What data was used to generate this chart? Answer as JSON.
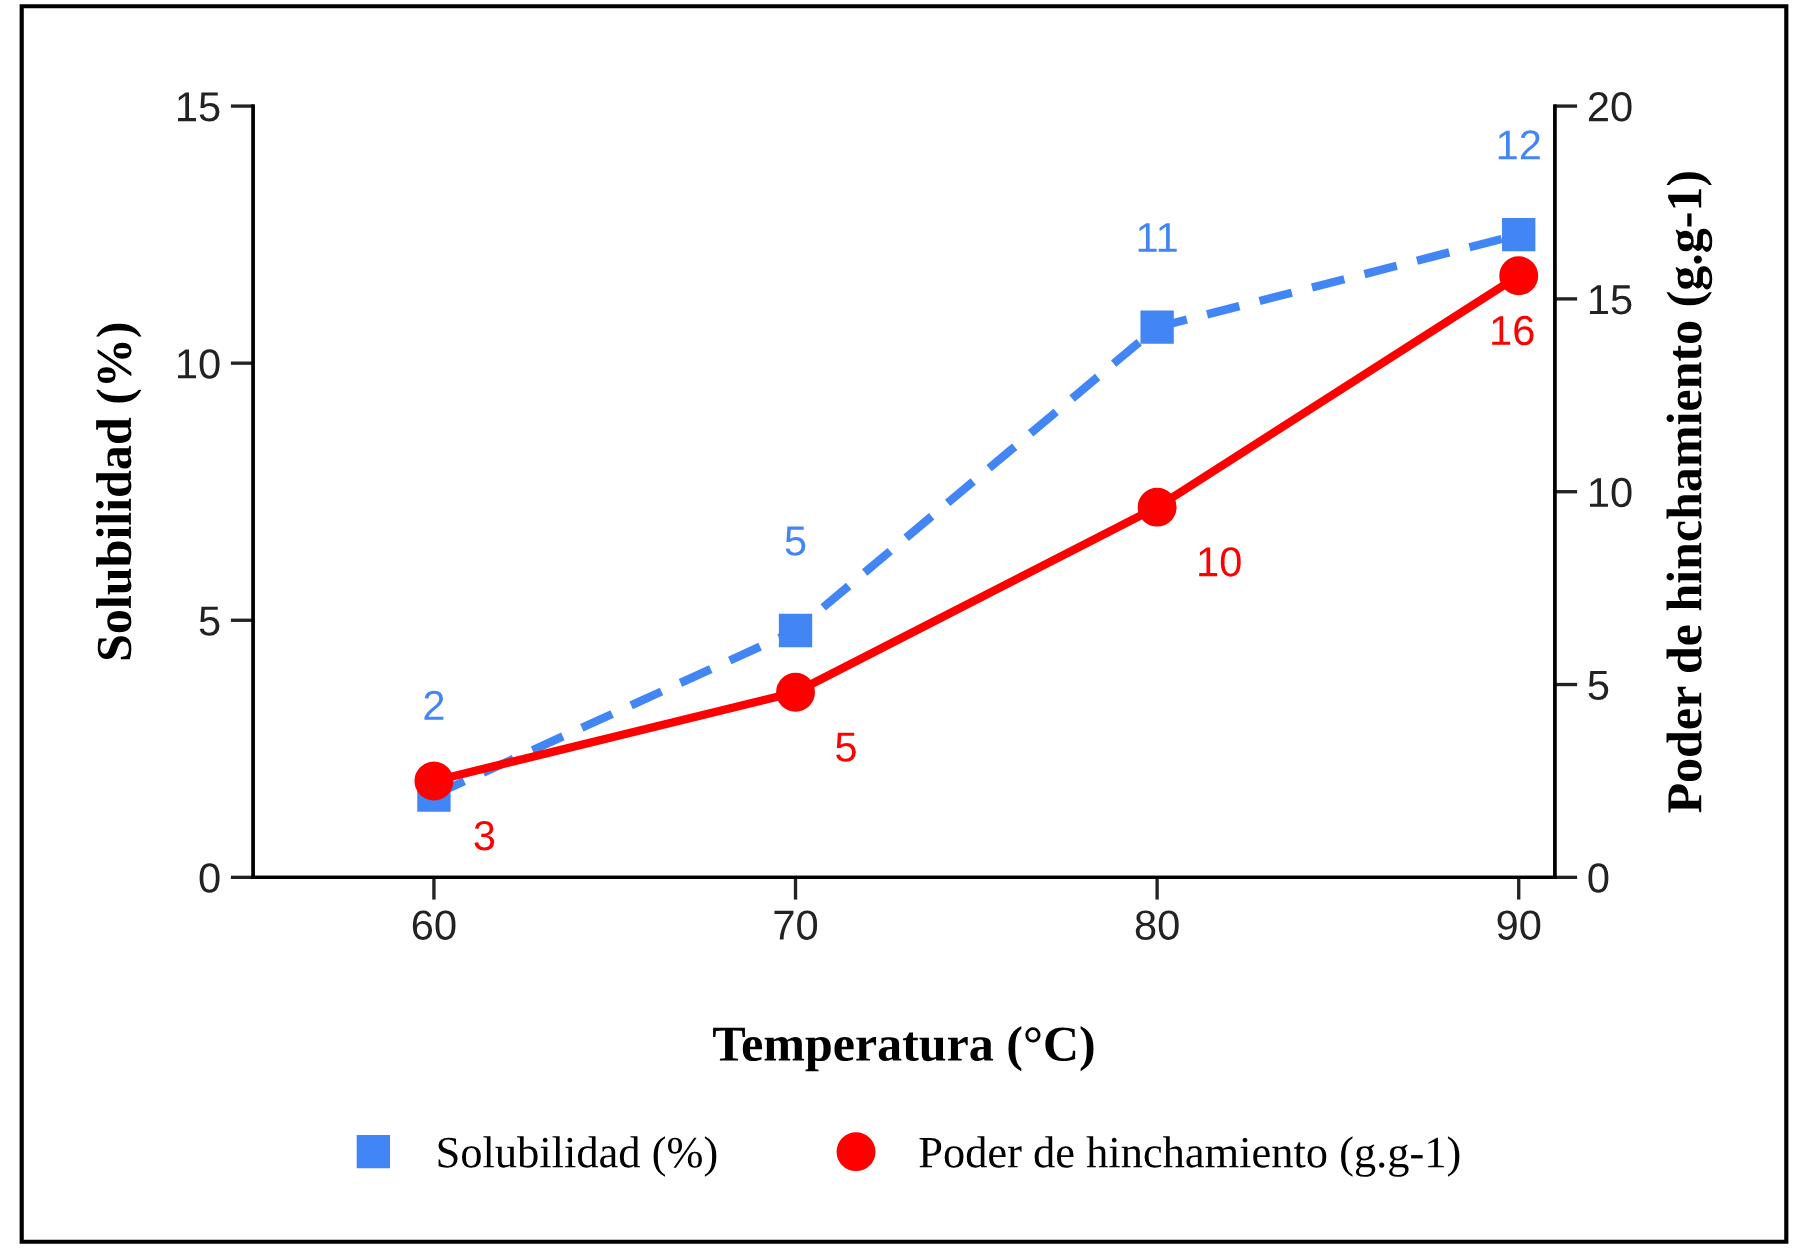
{
  "chart_data": {
    "type": "line",
    "xlabel": "Temperatura (°C)",
    "ylabel": "Solubilidad (%)",
    "y2label": "Poder de hinchamiento (g.g-1)",
    "x": [
      60,
      70,
      80,
      90
    ],
    "xlim": [
      55,
      91
    ],
    "xticks": [
      60,
      70,
      80,
      90
    ],
    "ylim": [
      0,
      15
    ],
    "yticks": [
      0,
      5,
      10,
      15
    ],
    "y2lim": [
      0,
      20
    ],
    "y2ticks": [
      0,
      5,
      10,
      15,
      20
    ],
    "series": [
      {
        "name": "Solubilidad (%)",
        "color": "#4285f4",
        "values": [
          1.6,
          4.8,
          10.7,
          12.5
        ],
        "value_labels": [
          "2",
          "5",
          "11",
          "12"
        ],
        "marker": "square",
        "line_style": "dashed"
      },
      {
        "name": "Poder de hinchamiento (g.g-1)",
        "color": "#ff0000",
        "values": [
          2.5,
          4.8,
          9.6,
          15.6
        ],
        "value_labels": [
          "3",
          "5",
          "10",
          "16"
        ],
        "marker": "circle",
        "line_style": "solid",
        "axis": "y2"
      }
    ],
    "grid": false,
    "legend": "bottom"
  }
}
